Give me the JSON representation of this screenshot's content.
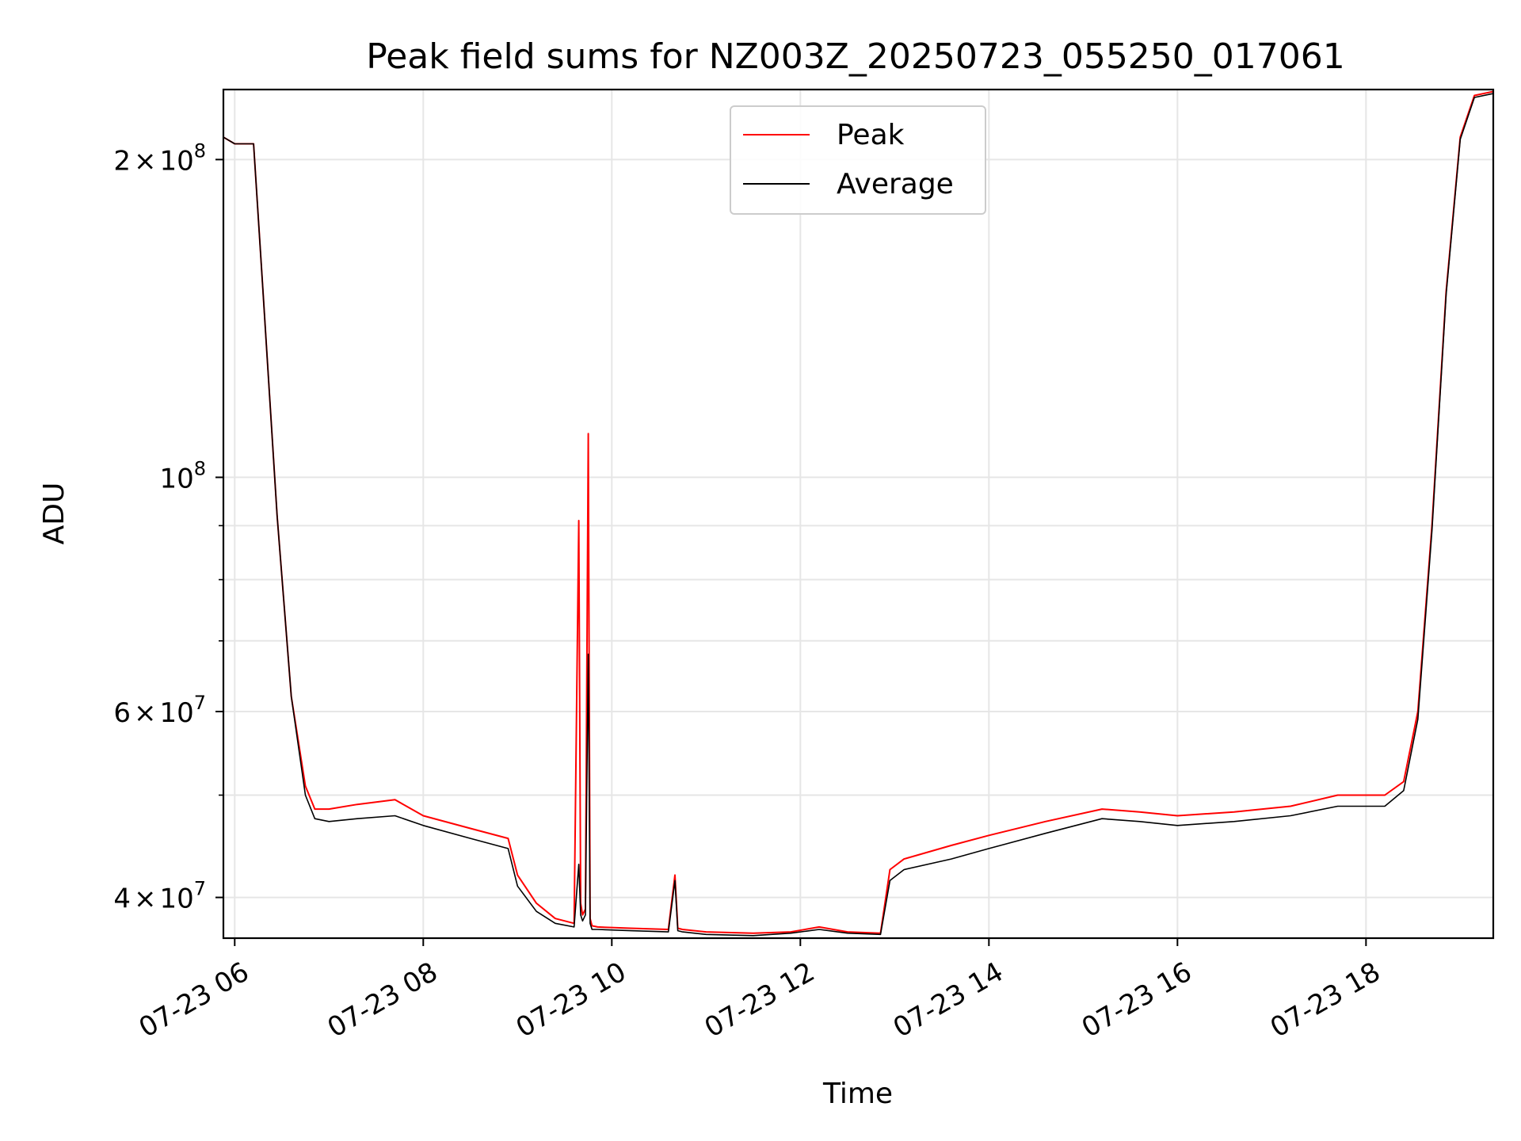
{
  "chart_data": {
    "type": "line",
    "title": "Peak field sums for NZ003Z_20250723_055250_017061",
    "xlabel": "Time",
    "ylabel": "ADU",
    "yscale": "log",
    "xlim": [
      5.88,
      19.35
    ],
    "ylim": [
      36600000,
      233000000
    ],
    "grid": true,
    "legend_position": "upper-center",
    "x_unit": "hours of 2025-07-23",
    "x_ticks": [
      {
        "value": 6,
        "label": "07-23 06"
      },
      {
        "value": 8,
        "label": "07-23 08"
      },
      {
        "value": 10,
        "label": "07-23 10"
      },
      {
        "value": 12,
        "label": "07-23 12"
      },
      {
        "value": 14,
        "label": "07-23 14"
      },
      {
        "value": 16,
        "label": "07-23 16"
      },
      {
        "value": 18,
        "label": "07-23 18"
      }
    ],
    "y_major_ticks": [
      {
        "value": 40000000,
        "mantissa": "4",
        "exp": "7",
        "has_mantissa": true
      },
      {
        "value": 60000000,
        "mantissa": "6",
        "exp": "7",
        "has_mantissa": true
      },
      {
        "value": 100000000,
        "mantissa": "",
        "exp": "8",
        "has_mantissa": false
      },
      {
        "value": 200000000,
        "mantissa": "2",
        "exp": "8",
        "has_mantissa": true
      }
    ],
    "y_minor_ticks": [
      50000000,
      70000000,
      80000000,
      90000000
    ],
    "series": [
      {
        "name": "Peak",
        "color": "#ff0000",
        "x": [
          5.88,
          6.0,
          6.2,
          6.3,
          6.45,
          6.6,
          6.75,
          6.85,
          7.0,
          7.3,
          7.7,
          8.0,
          8.5,
          8.9,
          9.0,
          9.2,
          9.4,
          9.6,
          9.65,
          9.67,
          9.69,
          9.72,
          9.75,
          9.77,
          9.79,
          9.85,
          10.2,
          10.6,
          10.67,
          10.7,
          10.75,
          11.0,
          11.5,
          11.9,
          12.2,
          12.5,
          12.85,
          12.95,
          13.1,
          13.6,
          14.0,
          14.6,
          15.2,
          15.6,
          16.0,
          16.6,
          17.2,
          17.7,
          18.2,
          18.4,
          18.55,
          18.7,
          18.85,
          19.0,
          19.15,
          19.35
        ],
        "y": [
          210000000,
          207000000,
          207000000,
          150000000,
          92000000,
          62000000,
          51000000,
          48500000,
          48500000,
          49000000,
          49500000,
          47800000,
          46500000,
          45500000,
          42000000,
          39500000,
          38200000,
          37800000,
          91000000,
          39500000,
          38500000,
          39000000,
          110000000,
          38200000,
          37600000,
          37500000,
          37400000,
          37300000,
          42000000,
          37400000,
          37300000,
          37100000,
          37000000,
          37100000,
          37500000,
          37100000,
          37000000,
          42500000,
          43500000,
          44800000,
          45800000,
          47200000,
          48500000,
          48200000,
          47800000,
          48200000,
          48800000,
          50000000,
          50000000,
          51500000,
          60000000,
          90000000,
          150000000,
          210000000,
          230000000,
          232000000
        ]
      },
      {
        "name": "Average",
        "color": "#000000",
        "x": [
          5.88,
          6.0,
          6.2,
          6.3,
          6.45,
          6.6,
          6.75,
          6.85,
          7.0,
          7.3,
          7.7,
          8.0,
          8.5,
          8.9,
          9.0,
          9.2,
          9.4,
          9.6,
          9.65,
          9.67,
          9.69,
          9.72,
          9.75,
          9.77,
          9.79,
          9.85,
          10.2,
          10.6,
          10.67,
          10.7,
          10.75,
          11.0,
          11.5,
          11.9,
          12.2,
          12.5,
          12.85,
          12.95,
          13.1,
          13.6,
          14.0,
          14.6,
          15.2,
          15.6,
          16.0,
          16.6,
          17.2,
          17.7,
          18.2,
          18.4,
          18.55,
          18.7,
          18.85,
          19.0,
          19.15,
          19.35
        ],
        "y": [
          210000000,
          207000000,
          207000000,
          150000000,
          92000000,
          62000000,
          50000000,
          47500000,
          47200000,
          47500000,
          47800000,
          46800000,
          45500000,
          44500000,
          41000000,
          38800000,
          37800000,
          37500000,
          43000000,
          38500000,
          38000000,
          38500000,
          68000000,
          37800000,
          37300000,
          37300000,
          37200000,
          37100000,
          41500000,
          37200000,
          37100000,
          36900000,
          36800000,
          37000000,
          37300000,
          37000000,
          36900000,
          41500000,
          42500000,
          43500000,
          44500000,
          46000000,
          47500000,
          47200000,
          46800000,
          47200000,
          47800000,
          48800000,
          48800000,
          50500000,
          59000000,
          89000000,
          149000000,
          209000000,
          229000000,
          231000000
        ]
      }
    ]
  }
}
